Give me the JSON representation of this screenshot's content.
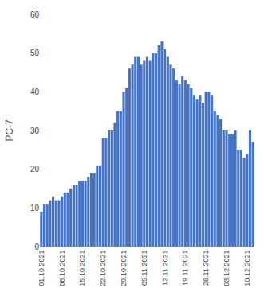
{
  "chart_data": {
    "type": "bar",
    "ylabel": "РС-7",
    "color": "#4472C4",
    "categories": [
      "01.10.2021",
      null,
      null,
      null,
      null,
      null,
      null,
      "08.10.2021",
      null,
      null,
      null,
      null,
      null,
      null,
      "15.10.2021",
      null,
      null,
      null,
      null,
      null,
      null,
      "22.10.2021",
      null,
      null,
      null,
      null,
      null,
      null,
      "29.10.2021",
      null,
      null,
      null,
      null,
      null,
      null,
      "05.11.2021",
      null,
      null,
      null,
      null,
      null,
      null,
      "12.11.2021",
      null,
      null,
      null,
      null,
      null,
      null,
      "19.11.2021",
      null,
      null,
      null,
      null,
      null,
      null,
      "26.11.2021",
      null,
      null,
      null,
      null,
      null,
      null,
      "03.12.2021",
      null,
      null,
      null,
      null,
      null,
      null,
      "10.12.2021",
      null,
      null
    ],
    "values": [
      9,
      11,
      11,
      12,
      13,
      12,
      12,
      13,
      14,
      14,
      15,
      16,
      16,
      17,
      17,
      17,
      18,
      19,
      19,
      21,
      21,
      28,
      28,
      30,
      30,
      32,
      35,
      35,
      40,
      41,
      46,
      47,
      49,
      49,
      47,
      48,
      49,
      48,
      50,
      50,
      52,
      53,
      51,
      49,
      47,
      46,
      43,
      42,
      44,
      43,
      42,
      41,
      39,
      38,
      39,
      37,
      40,
      40,
      39,
      35,
      34,
      33,
      30,
      30,
      29,
      29,
      30,
      25,
      25,
      23,
      24,
      30,
      27
    ],
    "ylim": [
      0,
      60
    ],
    "yticks": [
      0,
      10,
      20,
      30,
      40,
      50,
      60
    ],
    "grid": false
  }
}
